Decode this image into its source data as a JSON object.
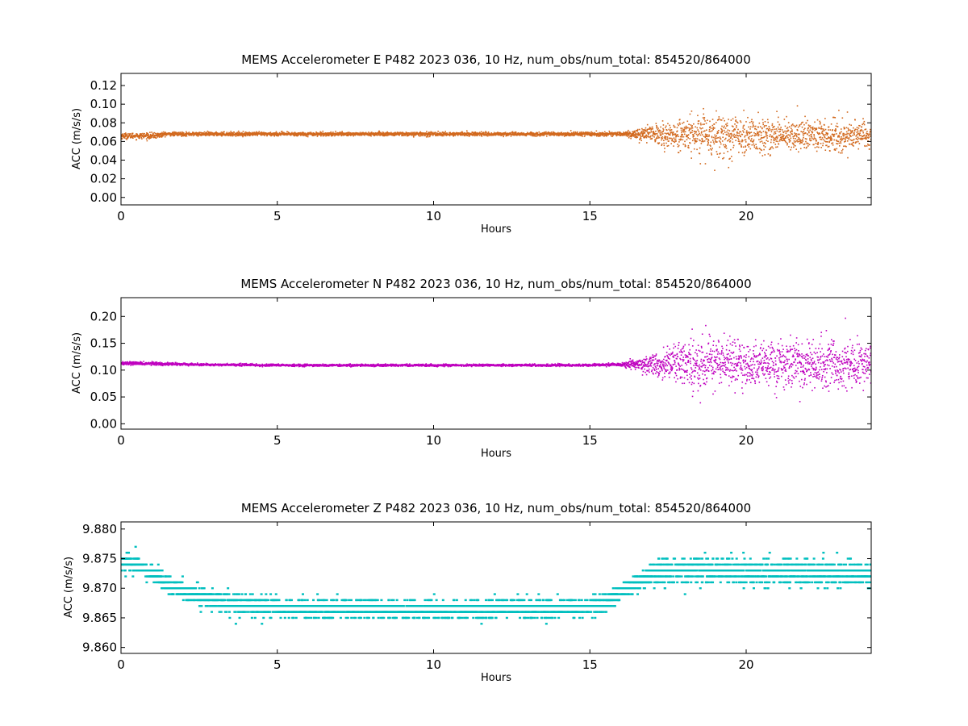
{
  "chart_data": [
    {
      "type": "scatter",
      "title": "MEMS Accelerometer E P482 2023 036, 10 Hz, num_obs/num_total: 854520/864000",
      "xlabel": "Hours",
      "ylabel": "ACC (m/s/s)",
      "xlim": [
        0,
        24
      ],
      "ylim": [
        -0.008,
        0.133
      ],
      "xticks": [
        0,
        5,
        10,
        15,
        20
      ],
      "xtick_labels": [
        "0",
        "5",
        "10",
        "15",
        "20"
      ],
      "yticks": [
        0.0,
        0.02,
        0.04,
        0.06,
        0.08,
        0.1,
        0.12
      ],
      "ytick_labels": [
        "0.00",
        "0.02",
        "0.04",
        "0.06",
        "0.08",
        "0.10",
        "0.12"
      ],
      "grid": false,
      "color": "#d2691e",
      "series": [
        {
          "x": [
            0,
            0.5,
            1.0,
            1.3,
            1.4,
            2,
            3,
            4,
            4.2,
            4.3,
            5,
            6,
            7,
            8,
            9,
            10,
            11,
            12,
            13,
            14,
            15,
            15.5,
            16,
            16.4,
            16.6,
            17,
            17.5,
            18,
            18.5,
            19,
            19.5,
            20,
            20.5,
            21,
            21.5,
            22,
            22.5,
            23,
            23.5,
            24
          ],
          "center": [
            0.066,
            0.066,
            0.066,
            0.067,
            0.068,
            0.068,
            0.068,
            0.068,
            0.068,
            0.068,
            0.068,
            0.068,
            0.068,
            0.068,
            0.068,
            0.068,
            0.068,
            0.068,
            0.068,
            0.068,
            0.068,
            0.068,
            0.068,
            0.068,
            0.068,
            0.068,
            0.067,
            0.067,
            0.067,
            0.067,
            0.067,
            0.067,
            0.066,
            0.066,
            0.066,
            0.066,
            0.066,
            0.066,
            0.066,
            0.066
          ],
          "spread": [
            0.003,
            0.003,
            0.003,
            0.003,
            0.002,
            0.002,
            0.002,
            0.002,
            0.002,
            0.002,
            0.002,
            0.002,
            0.002,
            0.002,
            0.002,
            0.002,
            0.002,
            0.002,
            0.002,
            0.002,
            0.002,
            0.002,
            0.002,
            0.004,
            0.006,
            0.01,
            0.013,
            0.017,
            0.022,
            0.025,
            0.024,
            0.02,
            0.017,
            0.018,
            0.017,
            0.017,
            0.016,
            0.016,
            0.015,
            0.014
          ]
        }
      ]
    },
    {
      "type": "scatter",
      "title": "MEMS Accelerometer N P482 2023 036, 10 Hz, num_obs/num_total: 854520/864000",
      "xlabel": "Hours",
      "ylabel": "ACC (m/s/s)",
      "xlim": [
        0,
        24
      ],
      "ylim": [
        -0.01,
        0.235
      ],
      "xticks": [
        0,
        5,
        10,
        15,
        20
      ],
      "xtick_labels": [
        "0",
        "5",
        "10",
        "15",
        "20"
      ],
      "yticks": [
        0.0,
        0.05,
        0.1,
        0.15,
        0.2
      ],
      "ytick_labels": [
        "0.00",
        "0.05",
        "0.10",
        "0.15",
        "0.20"
      ],
      "grid": false,
      "color": "#bf00bf",
      "series": [
        {
          "x": [
            0,
            1,
            2,
            3,
            4,
            4.2,
            4.3,
            5,
            6,
            7,
            8,
            9,
            10,
            11,
            12,
            13,
            14,
            15,
            15.5,
            16,
            16.4,
            16.6,
            17,
            17.5,
            18,
            18.5,
            19,
            19.5,
            20,
            20.5,
            21,
            21.5,
            22,
            22.5,
            23,
            23.5,
            24
          ],
          "center": [
            0.113,
            0.112,
            0.111,
            0.11,
            0.11,
            0.11,
            0.109,
            0.109,
            0.109,
            0.109,
            0.109,
            0.109,
            0.109,
            0.109,
            0.109,
            0.109,
            0.109,
            0.109,
            0.11,
            0.11,
            0.111,
            0.111,
            0.111,
            0.111,
            0.111,
            0.111,
            0.111,
            0.111,
            0.111,
            0.111,
            0.111,
            0.111,
            0.111,
            0.111,
            0.111,
            0.111,
            0.111
          ],
          "spread": [
            0.003,
            0.003,
            0.002,
            0.002,
            0.002,
            0.002,
            0.002,
            0.002,
            0.002,
            0.002,
            0.002,
            0.002,
            0.002,
            0.002,
            0.002,
            0.002,
            0.002,
            0.002,
            0.002,
            0.003,
            0.008,
            0.012,
            0.022,
            0.032,
            0.042,
            0.048,
            0.05,
            0.048,
            0.04,
            0.042,
            0.046,
            0.046,
            0.045,
            0.045,
            0.044,
            0.044,
            0.04
          ]
        }
      ]
    },
    {
      "type": "scatter",
      "title": "MEMS Accelerometer Z P482 2023 036, 10 Hz, num_obs/num_total: 854520/864000",
      "xlabel": "Hours",
      "ylabel": "ACC (m/s/s)",
      "xlim": [
        0,
        24
      ],
      "ylim": [
        9.859,
        9.8812
      ],
      "xticks": [
        0,
        5,
        10,
        15,
        20
      ],
      "xtick_labels": [
        "0",
        "5",
        "10",
        "15",
        "20"
      ],
      "yticks": [
        9.86,
        9.865,
        9.87,
        9.875,
        9.88
      ],
      "ytick_labels": [
        "9.860",
        "9.865",
        "9.870",
        "9.875",
        "9.880"
      ],
      "grid": false,
      "color": "#00bfbf",
      "quantization": 0.001,
      "series": [
        {
          "x": [
            0,
            0.5,
            1.0,
            1.5,
            2,
            2.5,
            3,
            4,
            5,
            6,
            7,
            8,
            9,
            10,
            11,
            12,
            13,
            14,
            15,
            15.5,
            16,
            16.5,
            17,
            17.5,
            18,
            19,
            20,
            21,
            22,
            23,
            24
          ],
          "center": [
            9.8745,
            9.874,
            9.8725,
            9.8705,
            9.8695,
            9.8688,
            9.868,
            9.8672,
            9.8668,
            9.8665,
            9.8665,
            9.8665,
            9.8663,
            9.8663,
            9.8663,
            9.8665,
            9.8665,
            9.8665,
            9.8667,
            9.8677,
            9.8692,
            9.871,
            9.8725,
            9.8728,
            9.873,
            9.873,
            9.8728,
            9.8727,
            9.8727,
            9.8725,
            9.8723
          ],
          "spread": [
            0.0015,
            0.0015,
            0.0015,
            0.0015,
            0.0015,
            0.0015,
            0.0015,
            0.0015,
            0.0015,
            0.0015,
            0.0015,
            0.0015,
            0.0015,
            0.0015,
            0.0015,
            0.0015,
            0.0015,
            0.0015,
            0.0015,
            0.0015,
            0.0015,
            0.0015,
            0.0018,
            0.002,
            0.002,
            0.002,
            0.002,
            0.002,
            0.002,
            0.002,
            0.002
          ]
        }
      ]
    }
  ]
}
